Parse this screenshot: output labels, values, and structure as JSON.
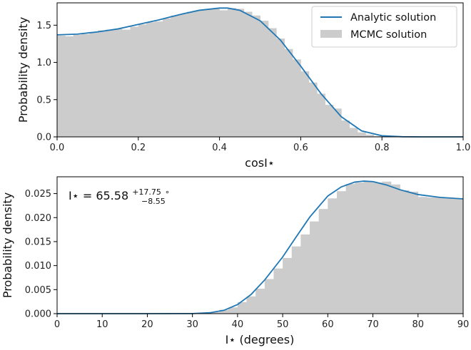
{
  "chart_data": [
    {
      "type": "area",
      "xlabel": "cosI⋆",
      "ylabel": "Probability density",
      "xlim": [
        0.0,
        1.0
      ],
      "ylim": [
        0.0,
        1.8
      ],
      "xticks": [
        "0.0",
        "0.2",
        "0.4",
        "0.6",
        "0.8",
        "1.0"
      ],
      "yticks": [
        "0.0",
        "0.5",
        "1.0",
        "1.5"
      ],
      "legend": {
        "placement": "top-right",
        "entries": [
          "Analytic solution",
          "MCMC solution"
        ]
      },
      "series": [
        {
          "name": "Analytic solution",
          "style": "line",
          "color": "#1f77b4",
          "x": [
            0.0,
            0.05,
            0.1,
            0.15,
            0.2,
            0.25,
            0.3,
            0.35,
            0.4,
            0.42,
            0.45,
            0.5,
            0.55,
            0.6,
            0.65,
            0.7,
            0.75,
            0.8,
            0.85,
            0.9,
            1.0
          ],
          "y": [
            1.37,
            1.38,
            1.41,
            1.45,
            1.51,
            1.57,
            1.64,
            1.7,
            1.73,
            1.73,
            1.7,
            1.56,
            1.3,
            0.95,
            0.58,
            0.27,
            0.08,
            0.015,
            0.002,
            0.0,
            0.0
          ]
        },
        {
          "name": "MCMC solution",
          "style": "histogram",
          "color": "#cccccc",
          "bin_width": 0.02,
          "x": [
            0.01,
            0.03,
            0.05,
            0.07,
            0.09,
            0.11,
            0.13,
            0.15,
            0.17,
            0.19,
            0.21,
            0.23,
            0.25,
            0.27,
            0.29,
            0.31,
            0.33,
            0.35,
            0.37,
            0.39,
            0.41,
            0.43,
            0.45,
            0.47,
            0.49,
            0.51,
            0.53,
            0.55,
            0.57,
            0.59,
            0.61,
            0.63,
            0.65,
            0.67,
            0.69,
            0.71,
            0.73,
            0.75,
            0.77,
            0.79,
            0.81,
            0.83,
            0.85,
            0.87,
            0.89,
            0.91,
            0.93,
            0.95,
            0.97,
            0.99
          ],
          "y": [
            1.36,
            1.35,
            1.37,
            1.38,
            1.4,
            1.43,
            1.44,
            1.45,
            1.44,
            1.48,
            1.51,
            1.54,
            1.55,
            1.59,
            1.63,
            1.65,
            1.68,
            1.7,
            1.71,
            1.72,
            1.7,
            1.73,
            1.72,
            1.68,
            1.63,
            1.56,
            1.46,
            1.32,
            1.18,
            1.04,
            0.88,
            0.73,
            0.58,
            0.43,
            0.38,
            0.22,
            0.12,
            0.06,
            0.03,
            0.01,
            0.005,
            0.002,
            0.0,
            0.0,
            0.0,
            0.0,
            0.0,
            0.0,
            0.0,
            0.0
          ]
        }
      ]
    },
    {
      "type": "area",
      "xlabel": "I⋆ (degrees)",
      "ylabel": "Probability density",
      "xlim": [
        0,
        90
      ],
      "ylim": [
        0.0,
        0.0285
      ],
      "xticks": [
        "0",
        "10",
        "20",
        "30",
        "40",
        "50",
        "60",
        "70",
        "80",
        "90"
      ],
      "yticks": [
        "0.000",
        "0.005",
        "0.010",
        "0.015",
        "0.020",
        "0.025"
      ],
      "annotation": {
        "base": "I⋆ = 65.58",
        "sup": "+17.75",
        "sub": "−8.55",
        "suffix": "∘"
      },
      "series": [
        {
          "name": "Analytic solution",
          "style": "line",
          "color": "#1f77b4",
          "x": [
            0,
            10,
            20,
            30,
            34,
            37,
            40,
            43,
            46,
            50,
            53,
            56,
            60,
            63,
            66,
            68,
            70,
            73,
            76,
            80,
            85,
            90
          ],
          "y": [
            0.0,
            0.0,
            0.0,
            2e-05,
            0.0002,
            0.0007,
            0.0019,
            0.004,
            0.007,
            0.0118,
            0.016,
            0.0201,
            0.0245,
            0.0264,
            0.0274,
            0.0276,
            0.0275,
            0.0268,
            0.0258,
            0.0248,
            0.0242,
            0.0239
          ]
        },
        {
          "name": "MCMC solution",
          "style": "histogram",
          "color": "#cccccc",
          "bin_width": 2,
          "x": [
            1,
            3,
            5,
            7,
            9,
            11,
            13,
            15,
            17,
            19,
            21,
            23,
            25,
            27,
            29,
            31,
            33,
            35,
            37,
            39,
            41,
            43,
            45,
            47,
            49,
            51,
            53,
            55,
            57,
            59,
            61,
            63,
            65,
            67,
            69,
            71,
            73,
            75,
            77,
            79,
            81,
            83,
            85,
            87,
            89
          ],
          "y": [
            0.0,
            0.0,
            0.0,
            0.0,
            0.0,
            0.0,
            0.0,
            0.0,
            0.0,
            0.0,
            0.0,
            0.0,
            0.0,
            0.0,
            0.0,
            5e-05,
            0.0001,
            0.0003,
            0.0008,
            0.0013,
            0.0024,
            0.0036,
            0.0052,
            0.0072,
            0.0094,
            0.0116,
            0.014,
            0.0165,
            0.0192,
            0.0218,
            0.024,
            0.0255,
            0.027,
            0.0273,
            0.0275,
            0.0273,
            0.0275,
            0.0269,
            0.0257,
            0.0254,
            0.0243,
            0.0242,
            0.0243,
            0.024,
            0.0239
          ]
        }
      ]
    }
  ]
}
